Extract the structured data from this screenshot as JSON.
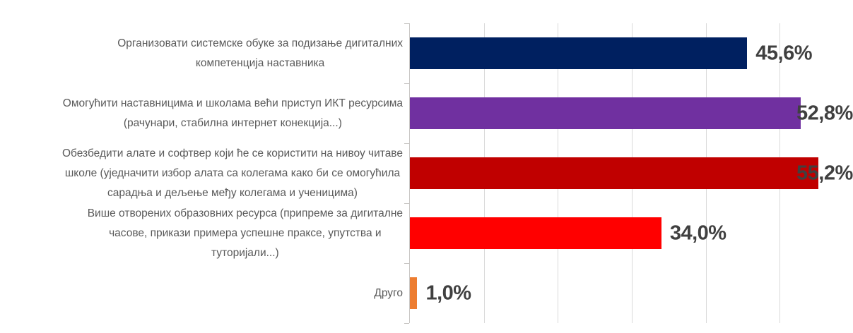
{
  "chart_data": {
    "type": "bar",
    "orientation": "horizontal",
    "title": "",
    "xlabel": "",
    "ylabel": "",
    "xlim": [
      0,
      60
    ],
    "gridline_interval": 10,
    "grid": true,
    "legend_position": "none",
    "value_suffix": "%",
    "categories": [
      "Организовати системске обуке за подизање дигиталних\nкомпетенција наставника",
      "Омогућити наставницима и школама већи приступ ИКТ ресурсима\n(рачунари, стабилна интернет конекција...)",
      "Обезбедити алате и софтвер који ће се користити на нивоу читаве\nшколе (уједначити избор алата са колегама како би се омогућила\nсарадња и дељење међу колегама и ученицима)",
      "Више отворених образовних ресурса (припреме за дигиталне\nчасове, прикази примера успешне праксе, упутства и\nтуторијали...)",
      "Друго"
    ],
    "values": [
      45.6,
      52.8,
      55.2,
      34.0,
      1.0
    ],
    "value_labels": [
      "45,6%",
      "52,8%",
      "55,2%",
      "34,0%",
      "1,0%"
    ],
    "bar_colors": [
      "#002060",
      "#7030A0",
      "#C00000",
      "#FF0000",
      "#ED7D31"
    ]
  },
  "style": {
    "background": "#FFFFFF",
    "gridline_color": "#D9D9D9",
    "axis_color": "#C8C6C4",
    "category_label_color": "#595959",
    "value_label_color": "#404040"
  }
}
